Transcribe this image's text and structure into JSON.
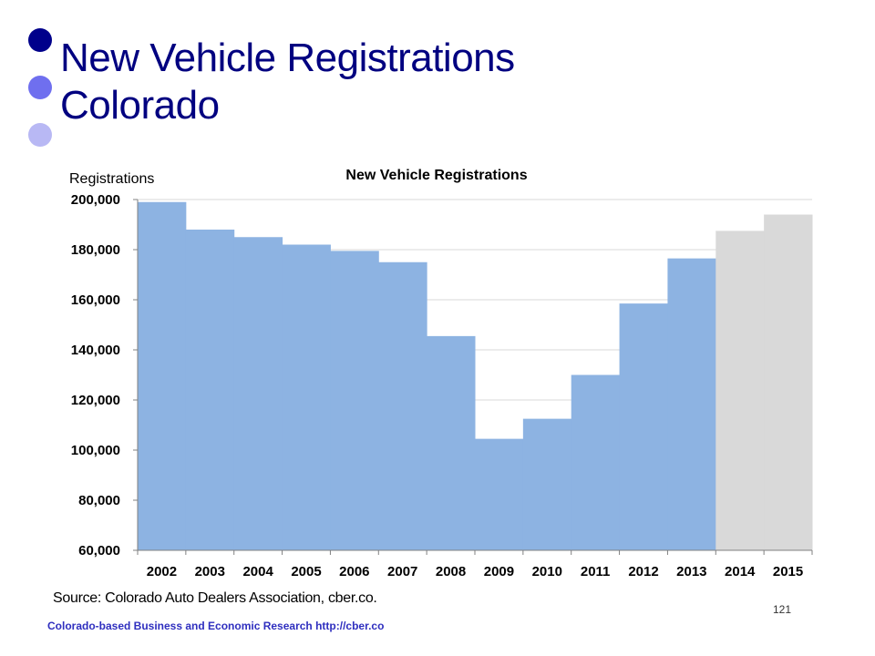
{
  "slide": {
    "title_line1": "New Vehicle Registrations",
    "title_line2": "Colorado",
    "bullet_colors": [
      "#00008b",
      "#6f6fef",
      "#b8b8f4"
    ],
    "source": "Source: Colorado Auto Dealers Association, cber.co.",
    "page_number": "121",
    "footer": "Colorado-based Business and Economic Research http://cber.co"
  },
  "chart_data": {
    "type": "bar",
    "title": "New Vehicle Registrations",
    "ylabel": "Registrations",
    "xlabel": "",
    "ylim": [
      60000,
      200000
    ],
    "yticks": [
      200000,
      180000,
      160000,
      140000,
      120000,
      100000,
      80000,
      60000
    ],
    "ytick_labels": [
      "200,000",
      "180,000",
      "160,000",
      "140,000",
      "120,000",
      "100,000",
      "80,000",
      "60,000"
    ],
    "grid": true,
    "categories": [
      "2002",
      "2003",
      "2004",
      "2005",
      "2006",
      "2007",
      "2008",
      "2009",
      "2010",
      "2011",
      "2012",
      "2013",
      "2014",
      "2015"
    ],
    "values": [
      199000,
      188000,
      185000,
      182000,
      179500,
      175000,
      145500,
      104500,
      112500,
      130000,
      158500,
      176500,
      187500,
      194000
    ],
    "bar_colors": [
      "#8db3e2",
      "#8db3e2",
      "#8db3e2",
      "#8db3e2",
      "#8db3e2",
      "#8db3e2",
      "#8db3e2",
      "#8db3e2",
      "#8db3e2",
      "#8db3e2",
      "#8db3e2",
      "#8db3e2",
      "#d9d9d9",
      "#d9d9d9"
    ]
  }
}
